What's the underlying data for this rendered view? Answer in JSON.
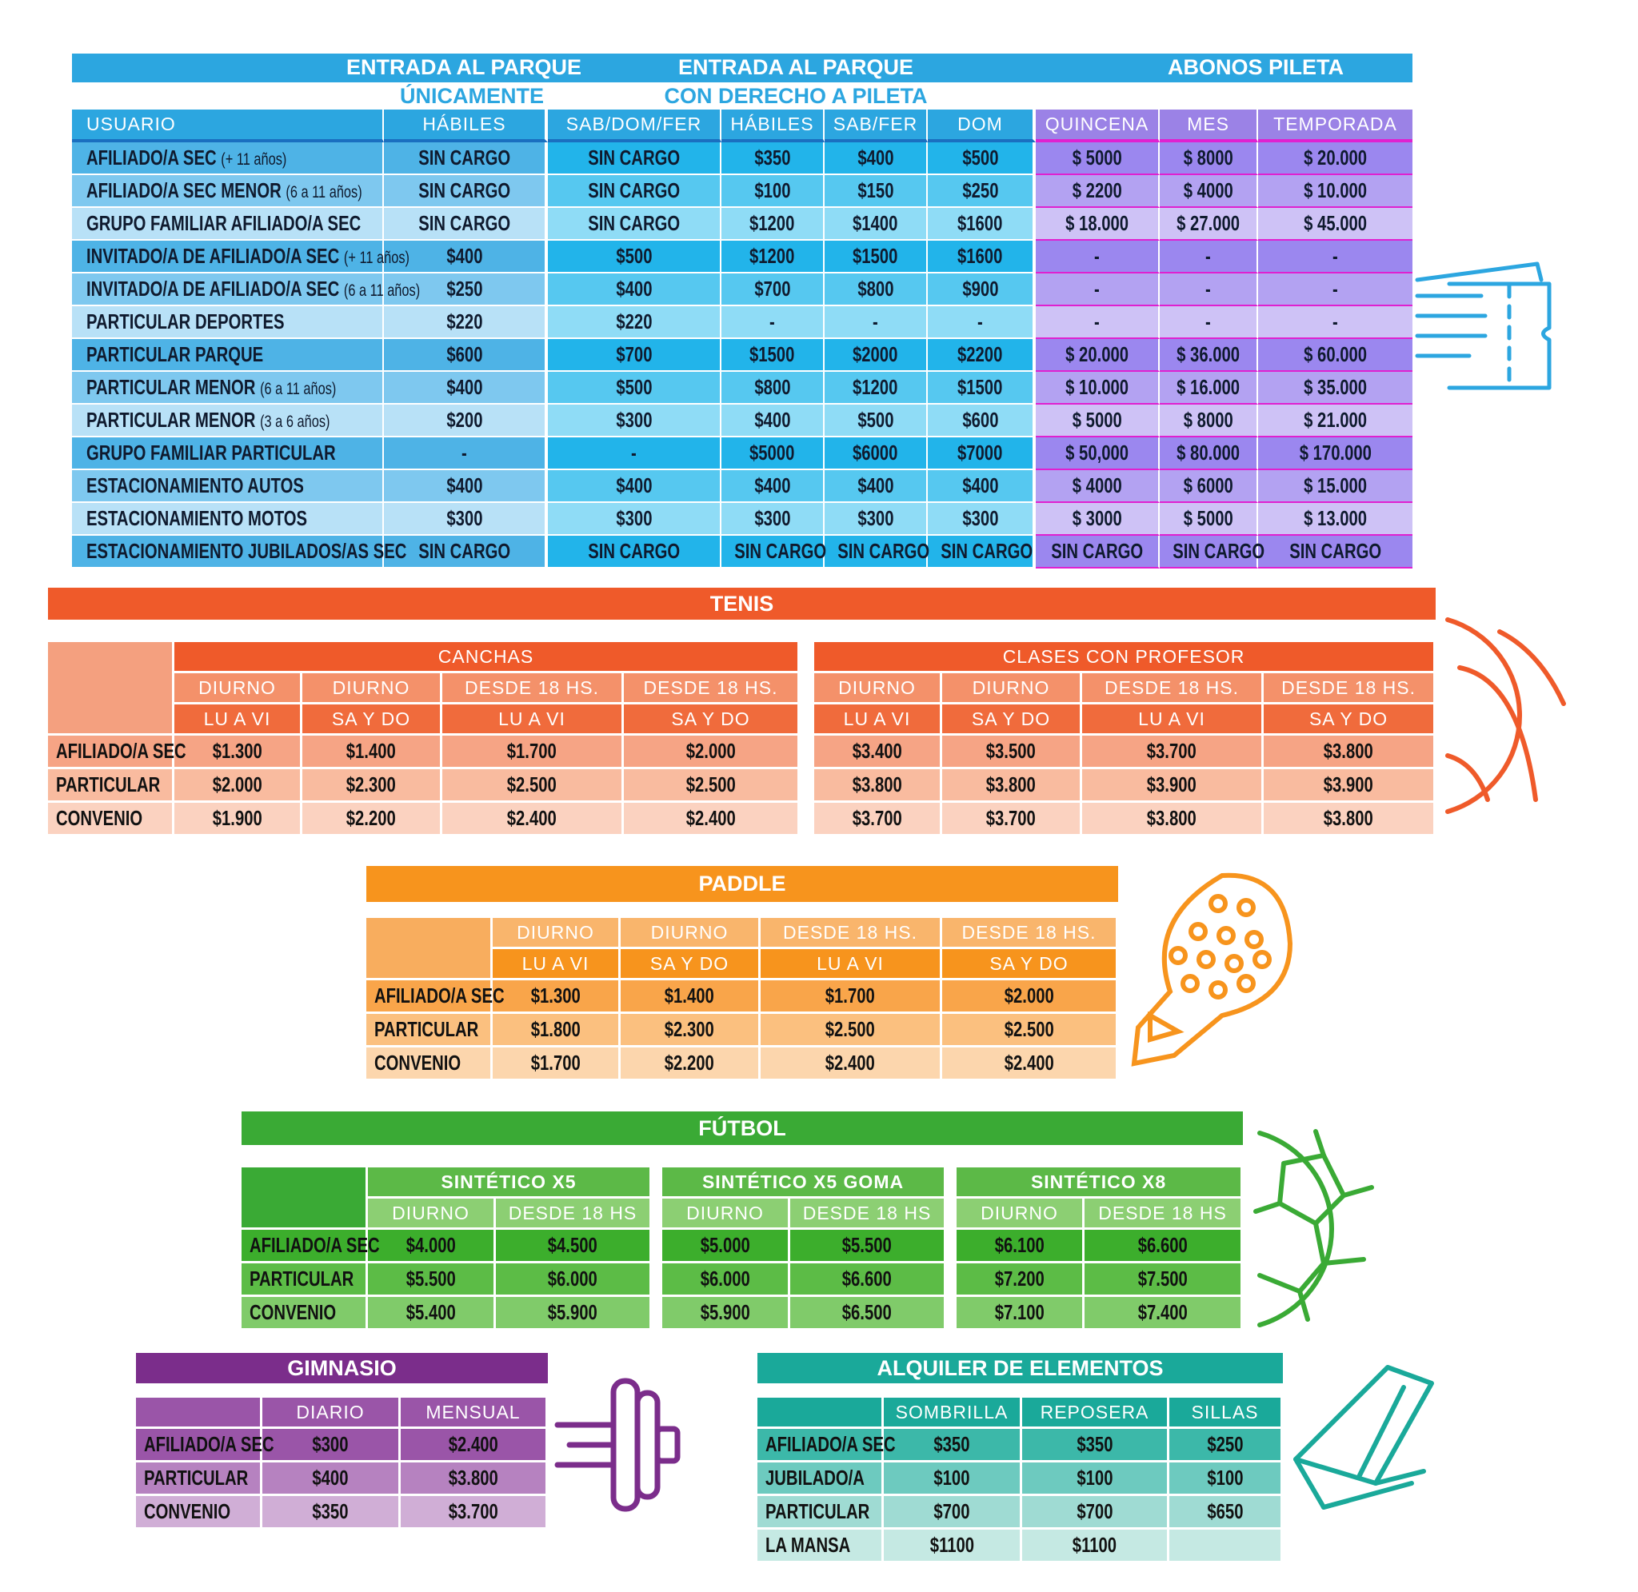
{
  "park": {
    "title_entrada": "ENTRADA AL PARQUE",
    "title_unicamente": "ÚNICAMENTE",
    "title_entrada2": "ENTRADA AL PARQUE",
    "title_pileta": "CON DERECHO A PILETA",
    "title_abonos": "ABONOS PILETA",
    "headers": [
      "USUARIO",
      "HÁBILES",
      "SAB/DOM/FER",
      "HÁBILES",
      "SAB/FER",
      "DOM",
      "QUINCENA",
      "MES",
      "TEMPORADA"
    ],
    "rows": [
      {
        "user": "AFILIADO/A SEC",
        "note": "(+ 11 años)",
        "v": [
          "SIN CARGO",
          "SIN CARGO",
          "$350",
          "$400",
          "$500",
          "$ 5000",
          "$ 8000",
          "$ 20.000"
        ]
      },
      {
        "user": "AFILIADO/A SEC MENOR",
        "note": "(6 a 11 años)",
        "v": [
          "SIN CARGO",
          "SIN CARGO",
          "$100",
          "$150",
          "$250",
          "$ 2200",
          "$ 4000",
          "$ 10.000"
        ]
      },
      {
        "user": "GRUPO FAMILIAR AFILIADO/A SEC",
        "note": "",
        "v": [
          "SIN CARGO",
          "SIN CARGO",
          "$1200",
          "$1400",
          "$1600",
          "$ 18.000",
          "$ 27.000",
          "$ 45.000"
        ]
      },
      {
        "user": "INVITADO/A DE AFILIADO/A SEC",
        "note": "(+ 11 años)",
        "v": [
          "$400",
          "$500",
          "$1200",
          "$1500",
          "$1600",
          "-",
          "-",
          "-"
        ]
      },
      {
        "user": "INVITADO/A DE AFILIADO/A SEC",
        "note": "(6 a 11 años)",
        "v": [
          "$250",
          "$400",
          "$700",
          "$800",
          "$900",
          "-",
          "-",
          "-"
        ]
      },
      {
        "user": "PARTICULAR DEPORTES",
        "note": "",
        "v": [
          "$220",
          "$220",
          "-",
          "-",
          "-",
          "-",
          "-",
          "-"
        ]
      },
      {
        "user": "PARTICULAR PARQUE",
        "note": "",
        "v": [
          "$600",
          "$700",
          "$1500",
          "$2000",
          "$2200",
          "$ 20.000",
          "$ 36.000",
          "$ 60.000"
        ]
      },
      {
        "user": "PARTICULAR MENOR",
        "note": "(6 a 11 años)",
        "v": [
          "$400",
          "$500",
          "$800",
          "$1200",
          "$1500",
          "$ 10.000",
          "$ 16.000",
          "$ 35.000"
        ]
      },
      {
        "user": "PARTICULAR MENOR",
        "note": "(3 a 6 años)",
        "v": [
          "$200",
          "$300",
          "$400",
          "$500",
          "$600",
          "$ 5000",
          "$ 8000",
          "$ 21.000"
        ]
      },
      {
        "user": "GRUPO FAMILIAR PARTICULAR",
        "note": "",
        "v": [
          "-",
          "-",
          "$5000",
          "$6000",
          "$7000",
          "$ 50,000",
          "$ 80.000",
          "$ 170.000"
        ]
      },
      {
        "user": "ESTACIONAMIENTO AUTOS",
        "note": "",
        "v": [
          "$400",
          "$400",
          "$400",
          "$400",
          "$400",
          "$ 4000",
          "$ 6000",
          "$ 15.000"
        ]
      },
      {
        "user": "ESTACIONAMIENTO MOTOS",
        "note": "",
        "v": [
          "$300",
          "$300",
          "$300",
          "$300",
          "$300",
          "$ 3000",
          "$ 5000",
          "$ 13.000"
        ]
      },
      {
        "user": "ESTACIONAMIENTO JUBILADOS/AS SEC",
        "note": "",
        "v": [
          "SIN CARGO",
          "SIN CARGO",
          "SIN CARGO",
          "SIN CARGO",
          "SIN CARGO",
          "SIN CARGO",
          "SIN CARGO",
          "SIN CARGO"
        ]
      }
    ]
  },
  "tenis": {
    "title": "TENIS",
    "group1": "CANCHAS",
    "group2": "CLASES CON PROFESOR",
    "h1": [
      "DIURNO",
      "DIURNO",
      "DESDE 18 HS.",
      "DESDE 18 HS.",
      "DIURNO",
      "DIURNO",
      "DESDE 18 HS.",
      "DESDE 18 HS."
    ],
    "h2": [
      "LU A VI",
      "SA Y DO",
      "LU A VI",
      "SA Y DO",
      "LU A VI",
      "SA Y DO",
      "LU A VI",
      "SA Y DO"
    ],
    "rows": [
      {
        "label": "AFILIADO/A SEC",
        "v": [
          "$1.300",
          "$1.400",
          "$1.700",
          "$2.000",
          "$3.400",
          "$3.500",
          "$3.700",
          "$3.800"
        ]
      },
      {
        "label": "PARTICULAR",
        "v": [
          "$2.000",
          "$2.300",
          "$2.500",
          "$2.500",
          "$3.800",
          "$3.800",
          "$3.900",
          "$3.900"
        ]
      },
      {
        "label": "CONVENIO",
        "v": [
          "$1.900",
          "$2.200",
          "$2.400",
          "$2.400",
          "$3.700",
          "$3.700",
          "$3.800",
          "$3.800"
        ]
      }
    ]
  },
  "paddle": {
    "title": "PADDLE",
    "h1": [
      "DIURNO",
      "DIURNO",
      "DESDE 18 HS.",
      "DESDE 18 HS."
    ],
    "h2": [
      "LU A VI",
      "SA Y DO",
      "LU A VI",
      "SA Y DO"
    ],
    "rows": [
      {
        "label": "AFILIADO/A SEC",
        "v": [
          "$1.300",
          "$1.400",
          "$1.700",
          "$2.000"
        ]
      },
      {
        "label": "PARTICULAR",
        "v": [
          "$1.800",
          "$2.300",
          "$2.500",
          "$2.500"
        ]
      },
      {
        "label": "CONVENIO",
        "v": [
          "$1.700",
          "$2.200",
          "$2.400",
          "$2.400"
        ]
      }
    ]
  },
  "futbol": {
    "title": "FÚTBOL",
    "groups": [
      "SINTÉTICO X5",
      "SINTÉTICO X5 GOMA",
      "SINTÉTICO X8"
    ],
    "h": [
      "DIURNO",
      "DESDE 18 HS",
      "DIURNO",
      "DESDE 18 HS",
      "DIURNO",
      "DESDE 18 HS"
    ],
    "rows": [
      {
        "label": "AFILIADO/A SEC",
        "v": [
          "$4.000",
          "$4.500",
          "$5.000",
          "$5.500",
          "$6.100",
          "$6.600"
        ]
      },
      {
        "label": "PARTICULAR",
        "v": [
          "$5.500",
          "$6.000",
          "$6.000",
          "$6.600",
          "$7.200",
          "$7.500"
        ]
      },
      {
        "label": "CONVENIO",
        "v": [
          "$5.400",
          "$5.900",
          "$5.900",
          "$6.500",
          "$7.100",
          "$7.400"
        ]
      }
    ]
  },
  "gimnasio": {
    "title": "GIMNASIO",
    "h": [
      "DIARIO",
      "MENSUAL"
    ],
    "rows": [
      {
        "label": "AFILIADO/A SEC",
        "v": [
          "$300",
          "$2.400"
        ]
      },
      {
        "label": "PARTICULAR",
        "v": [
          "$400",
          "$3.800"
        ]
      },
      {
        "label": "CONVENIO",
        "v": [
          "$350",
          "$3.700"
        ]
      }
    ]
  },
  "alquiler": {
    "title": "ALQUILER DE ELEMENTOS",
    "h": [
      "SOMBRILLA",
      "REPOSERA",
      "SILLAS"
    ],
    "rows": [
      {
        "label": "AFILIADO/A SEC",
        "v": [
          "$350",
          "$350",
          "$250"
        ]
      },
      {
        "label": "JUBILADO/A",
        "v": [
          "$100",
          "$100",
          "$100"
        ]
      },
      {
        "label": "PARTICULAR",
        "v": [
          "$700",
          "$700",
          "$650"
        ]
      },
      {
        "label": "LA MANSA",
        "v": [
          "$1100",
          "$1100",
          ""
        ]
      }
    ]
  },
  "colors": {
    "park_header": "#2ca6e0",
    "pileta_purple": "#9b82e6",
    "tenis": "#ef5a2a",
    "paddle": "#f7941d",
    "futbol": "#3aaa35",
    "gimnasio": "#7b2d8b",
    "alquiler": "#1aa99a"
  },
  "icons": [
    "ticket-icon",
    "tennis-ball-icon",
    "paddle-racket-icon",
    "soccer-ball-icon",
    "dumbbell-icon",
    "beach-chair-icon"
  ]
}
